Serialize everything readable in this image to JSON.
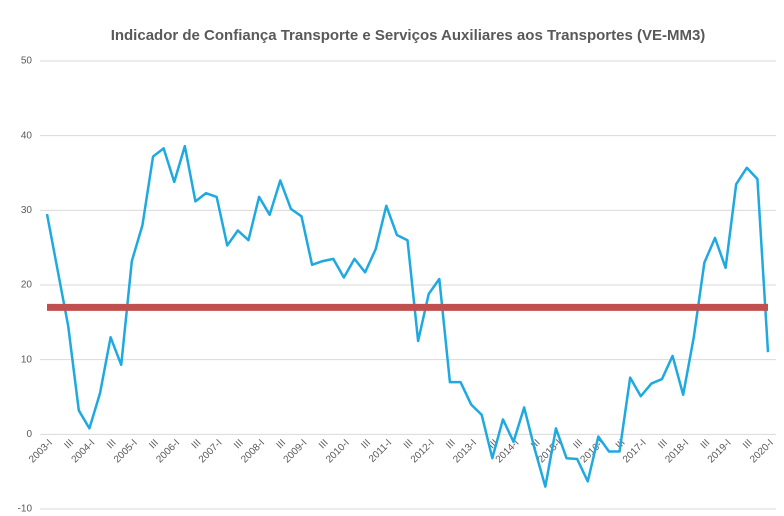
{
  "chart_data": {
    "type": "line",
    "title": "Indicador de Confiança Transporte e Serviços Auxiliares aos Transportes (VE-MM3)",
    "categories": [
      "2003-I",
      null,
      "III",
      null,
      "2004-I",
      null,
      "III",
      null,
      "2005-I",
      null,
      "III",
      null,
      "2006-I",
      null,
      "III",
      null,
      "2007-I",
      null,
      "III",
      null,
      "2008-I",
      null,
      "III",
      null,
      "2009-I",
      null,
      "III",
      null,
      "2010-I",
      null,
      "III",
      null,
      "2011-I",
      null,
      "III",
      null,
      "2012-I",
      null,
      "III",
      null,
      "2013-I",
      null,
      "III",
      null,
      "2014-I",
      null,
      "III",
      null,
      "2015-I",
      null,
      "III",
      null,
      "2016-I",
      null,
      "III",
      null,
      "2017-I",
      null,
      "III",
      null,
      "2018-I",
      null,
      "III",
      null,
      "2019-I",
      null,
      "III",
      null,
      "2020-I"
    ],
    "series": [
      {
        "color": "#1fa9e1",
        "values": [
          29.5,
          22,
          14.5,
          3.2,
          0.8,
          5.5,
          13,
          9.3,
          23.2,
          28,
          37.2,
          38.3,
          33.8,
          38.6,
          31.2,
          32.3,
          31.8,
          25.3,
          27.3,
          26,
          31.8,
          29.4,
          34,
          30.2,
          29.2,
          22.7,
          23.2,
          23.5,
          21,
          23.5,
          21.7,
          24.8,
          30.6,
          26.7,
          26,
          12.5,
          18.8,
          20.8,
          7,
          7,
          4,
          2.6,
          -3.2,
          2,
          -1,
          3.6,
          -2,
          -7,
          0.8,
          -3.2,
          -3.3,
          -6.3,
          -0.3,
          -2.3,
          -2.3,
          7.6,
          5.1,
          6.8,
          7.4,
          10.5,
          5.3,
          13,
          23,
          26.3,
          22.3,
          33.5,
          35.7,
          34.2,
          11
        ]
      }
    ],
    "reference_line": {
      "value": 17,
      "color": "#c0504d"
    },
    "ylim": [
      -10,
      50
    ],
    "yticks": [
      -10,
      0,
      10,
      20,
      30,
      40,
      50
    ],
    "grid": true
  }
}
